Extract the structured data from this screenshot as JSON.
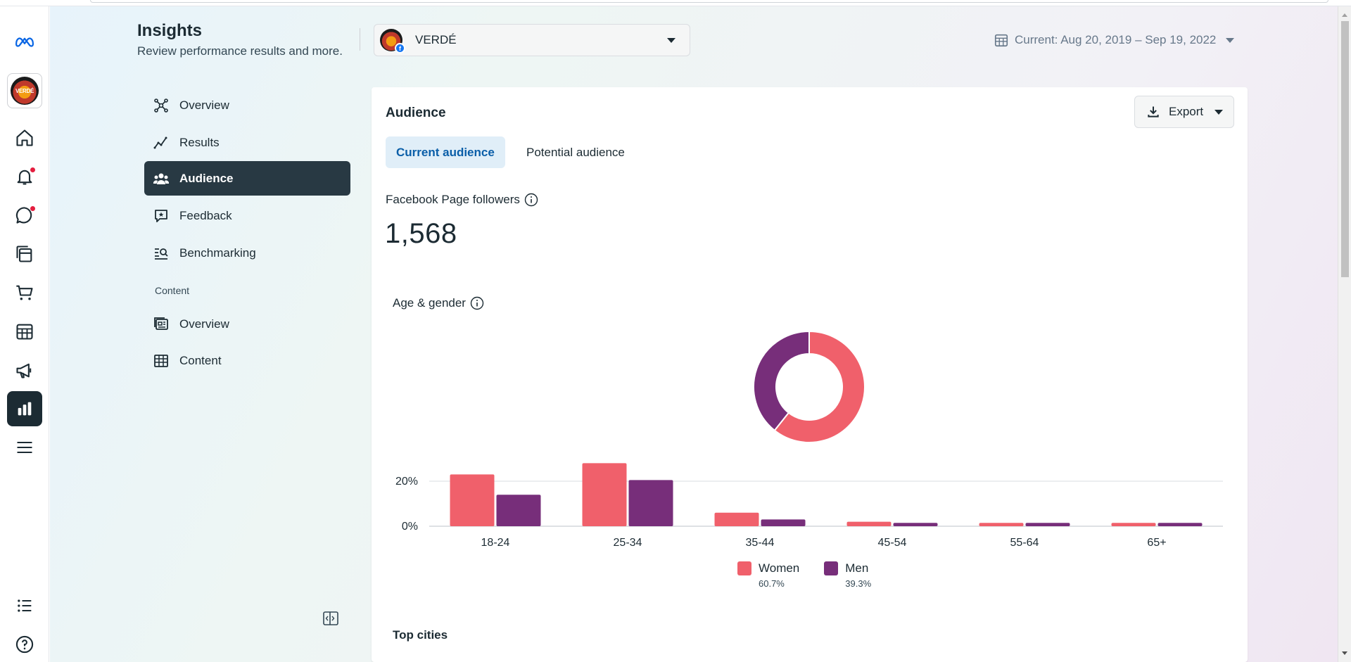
{
  "header": {
    "title": "Insights",
    "subtitle": "Review performance results and more.",
    "page_name": "VERDÉ",
    "date_range": "Current: Aug 20, 2019 – Sep 19, 2022"
  },
  "rail": {
    "avatar_text": "VERDÉ",
    "items": [
      "home-icon",
      "notifications-icon",
      "messages-icon",
      "posts-icon",
      "commerce-icon",
      "planner-icon",
      "ads-icon",
      "insights-icon",
      "menu-icon",
      "all-tools-icon",
      "help-icon"
    ]
  },
  "nav": {
    "items": [
      {
        "label": "Overview",
        "icon": "overview-icon"
      },
      {
        "label": "Results",
        "icon": "results-icon"
      },
      {
        "label": "Audience",
        "icon": "audience-icon"
      },
      {
        "label": "Feedback",
        "icon": "feedback-icon"
      },
      {
        "label": "Benchmarking",
        "icon": "benchmarking-icon"
      }
    ],
    "section": "Content",
    "content_items": [
      {
        "label": "Overview",
        "icon": "content-overview-icon"
      },
      {
        "label": "Content",
        "icon": "content-table-icon"
      }
    ]
  },
  "card": {
    "title": "Audience",
    "export_label": "Export",
    "tabs": [
      "Current audience",
      "Potential audience"
    ],
    "metric_label": "Facebook Page followers",
    "metric_value": "1,568",
    "chart_title": "Age & gender",
    "next_section": "Top cities"
  },
  "colors": {
    "women": "#f0606b",
    "men": "#772e7a",
    "dark": "#1c2b33",
    "active_tab_text": "#0a5ea8"
  },
  "chart_data": [
    {
      "type": "pie",
      "categories": [
        "Women",
        "Men"
      ],
      "values": [
        60.7,
        39.3
      ]
    },
    {
      "type": "bar",
      "categories": [
        "18-24",
        "25-34",
        "35-44",
        "45-54",
        "55-64",
        "65+"
      ],
      "series": [
        {
          "name": "Women",
          "values": [
            23,
            28,
            6,
            2,
            1.5,
            1.5
          ]
        },
        {
          "name": "Men",
          "values": [
            14,
            20.5,
            3,
            1.5,
            1.5,
            1.5
          ]
        }
      ],
      "ytick_labels": [
        "0%",
        "20%"
      ],
      "ylim": [
        0,
        30
      ],
      "legend": [
        {
          "label": "Women",
          "pct": "60.7%"
        },
        {
          "label": "Men",
          "pct": "39.3%"
        }
      ]
    }
  ]
}
